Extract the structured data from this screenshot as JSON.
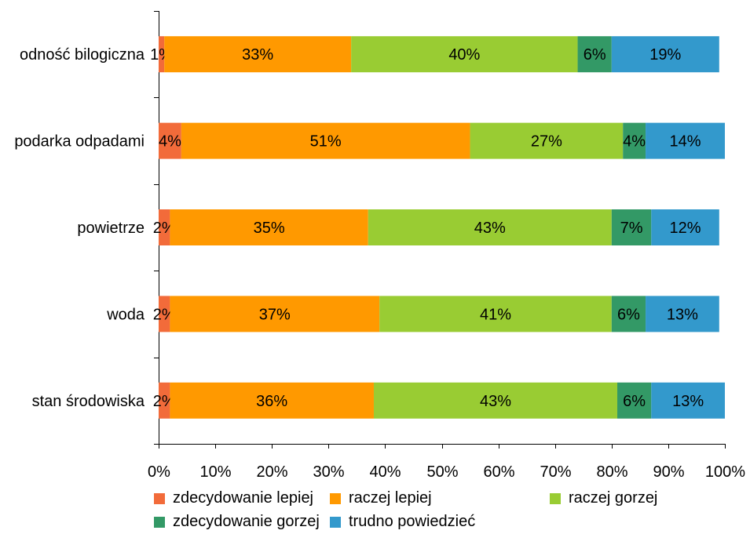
{
  "chart_data": {
    "type": "bar",
    "orientation": "horizontal",
    "stacked": "percent",
    "title": "",
    "xlabel": "",
    "ylabel": "",
    "xlim": [
      0,
      100
    ],
    "x_ticks": [
      "0%",
      "10%",
      "20%",
      "30%",
      "40%",
      "50%",
      "60%",
      "70%",
      "80%",
      "90%",
      "100%"
    ],
    "categories": [
      "odność bilogiczna",
      "podarka odpadami",
      "powietrze",
      "woda",
      "stan środowiska"
    ],
    "series": [
      {
        "name": "zdecydowanie lepiej",
        "color": "#F26B3A",
        "values": [
          1,
          4,
          2,
          2,
          2
        ]
      },
      {
        "name": "raczej lepiej",
        "color": "#FF9900",
        "values": [
          33,
          51,
          35,
          37,
          36
        ]
      },
      {
        "name": "raczej gorzej",
        "color": "#99CC33",
        "values": [
          40,
          27,
          43,
          41,
          43
        ]
      },
      {
        "name": "zdecydowanie gorzej",
        "color": "#339966",
        "values": [
          6,
          4,
          7,
          6,
          6
        ]
      },
      {
        "name": "trudno powiedzieć",
        "color": "#3399CC",
        "values": [
          19,
          14,
          12,
          13,
          13
        ]
      }
    ],
    "grid": false,
    "legend_position": "bottom"
  }
}
